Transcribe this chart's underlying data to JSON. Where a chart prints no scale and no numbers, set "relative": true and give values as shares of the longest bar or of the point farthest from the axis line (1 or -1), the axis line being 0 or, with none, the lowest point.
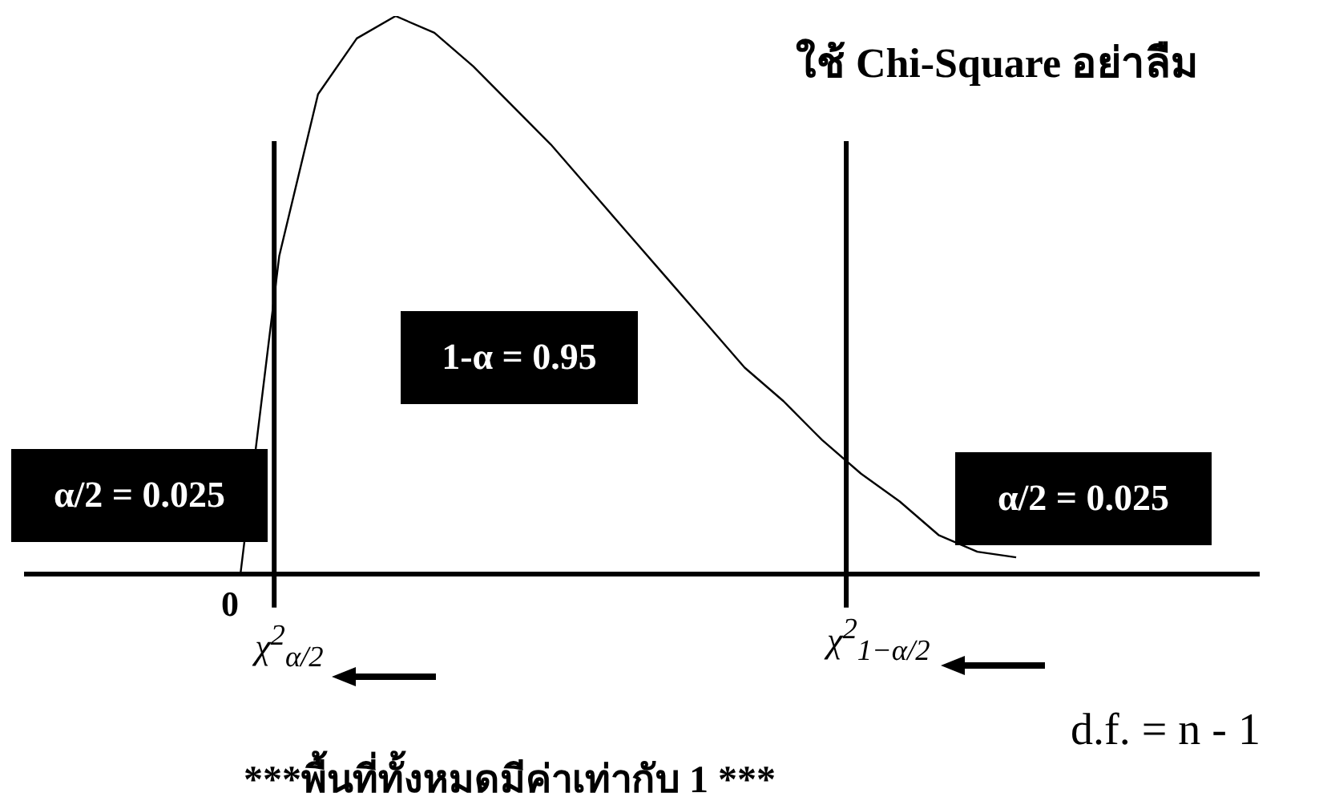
{
  "chart_data": {
    "type": "line",
    "relative": true,
    "title": "ใช้ Chi-Square อย่าลืม",
    "categories": [
      null,
      null,
      null,
      null,
      null,
      null,
      null,
      null,
      null,
      null,
      null,
      null,
      null,
      null,
      null,
      null,
      null,
      null,
      null,
      null,
      null
    ],
    "values": [
      0,
      0.57,
      0.86,
      0.96,
      1,
      0.97,
      0.91,
      0.84,
      0.77,
      0.69,
      0.61,
      0.53,
      0.45,
      0.37,
      0.31,
      0.24,
      0.18,
      0.13,
      0.07,
      0.04,
      0.03
    ],
    "color": "#000000",
    "marker": "none",
    "annotations": [
      "α/2 = 0.025",
      "1-α = 0.95",
      "α/2 = 0.025",
      "***พื้นที่ทั้งหมดมีค่าเท่ากับ 1 ***",
      "d.f. = n - 1",
      "0",
      "χ$^{2}$$_{α/2}$",
      "χ$^{2}$$_{1−α/2}$"
    ]
  }
}
